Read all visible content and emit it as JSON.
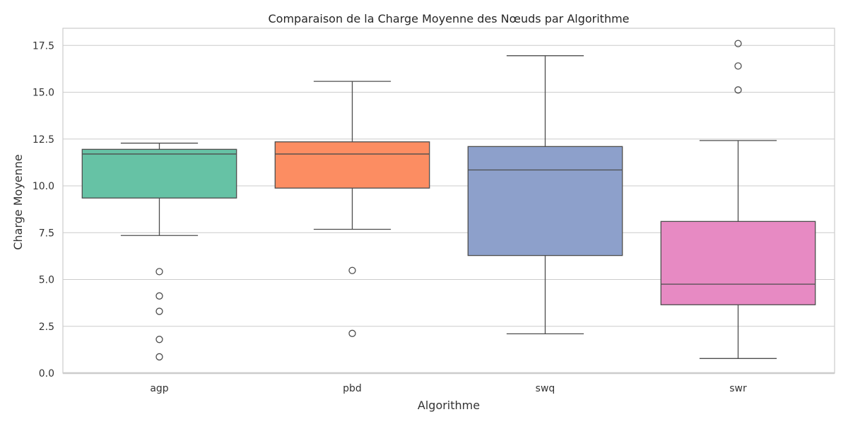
{
  "chart_data": {
    "type": "box",
    "title": "Comparaison de la Charge Moyenne des Nœuds par Algorithme",
    "xlabel": "Algorithme",
    "ylabel": "Charge Moyenne",
    "ylim": [
      0,
      18.4
    ],
    "yticks": [
      "0.0",
      "2.5",
      "5.0",
      "7.5",
      "10.0",
      "12.5",
      "15.0",
      "17.5"
    ],
    "grid": true,
    "categories": [
      "agp",
      "pbd",
      "swq",
      "swr"
    ],
    "boxes": [
      {
        "category": "agp",
        "color": "#66c2a5",
        "whisker_low": 7.35,
        "q1": 9.35,
        "median": 11.7,
        "q3": 11.95,
        "whisker_high": 12.28,
        "outliers": [
          5.42,
          4.12,
          3.3,
          1.8,
          0.87
        ]
      },
      {
        "category": "pbd",
        "color": "#fc8d62",
        "whisker_low": 7.68,
        "q1": 9.88,
        "median": 11.7,
        "q3": 12.35,
        "whisker_high": 15.58,
        "outliers": [
          5.48,
          2.12
        ]
      },
      {
        "category": "swq",
        "color": "#8da0cb",
        "whisker_low": 2.1,
        "q1": 6.28,
        "median": 10.85,
        "q3": 12.1,
        "whisker_high": 16.95,
        "outliers": []
      },
      {
        "category": "swr",
        "color": "#e78ac3",
        "whisker_low": 0.78,
        "q1": 3.65,
        "median": 4.75,
        "q3": 8.1,
        "whisker_high": 12.42,
        "outliers": [
          17.6,
          16.4,
          15.12
        ]
      }
    ]
  }
}
